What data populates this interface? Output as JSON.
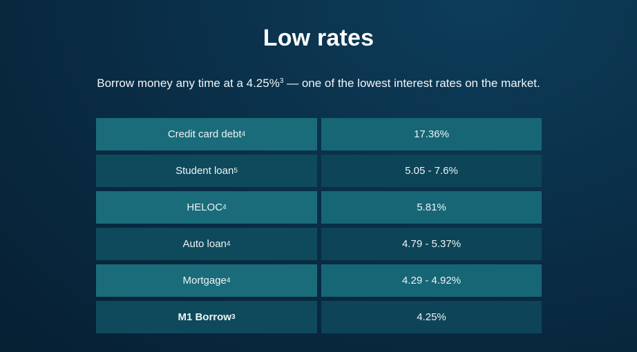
{
  "header": {
    "title": "Low rates",
    "subtitle_text": "Borrow money any time at a 4.25%",
    "subtitle_sup": "3",
    "subtitle_rest": " — one of the lowest interest rates on the market."
  },
  "rates": [
    {
      "label": "Credit card debt",
      "sup": "4",
      "value": "17.36%"
    },
    {
      "label": "Student loan",
      "sup": "5",
      "value": "5.05 - 7.6%"
    },
    {
      "label": "HELOC",
      "sup": "4",
      "value": "5.81%"
    },
    {
      "label": "Auto loan",
      "sup": "4",
      "value": "4.79 - 5.37%"
    },
    {
      "label": "Mortgage",
      "sup": "4",
      "value": "4.29 - 4.92%"
    },
    {
      "label": "M1 Borrow",
      "sup": "3",
      "value": "4.25%"
    }
  ]
}
